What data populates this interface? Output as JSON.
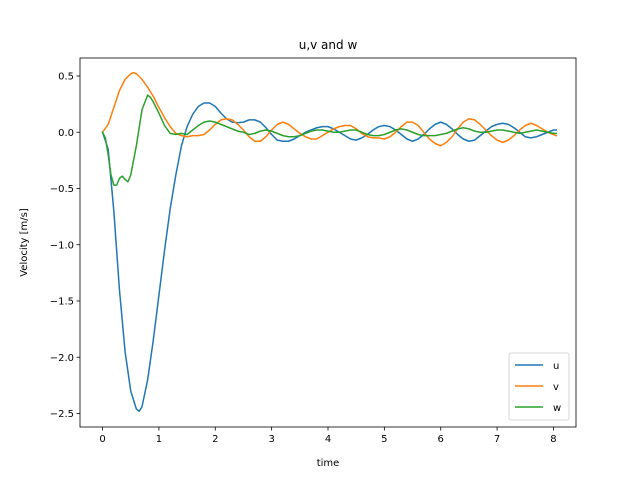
{
  "chart_data": {
    "type": "line",
    "title": "u,v and w",
    "xlabel": "time",
    "ylabel": "Velocity [m/s]",
    "xlim": [
      -0.4,
      8.4
    ],
    "ylim": [
      -2.62,
      0.66
    ],
    "xticks": [
      0,
      1,
      2,
      3,
      4,
      5,
      6,
      7,
      8
    ],
    "xtick_labels": [
      "0",
      "1",
      "2",
      "3",
      "4",
      "5",
      "6",
      "7",
      "8"
    ],
    "yticks": [
      0.5,
      0.0,
      -0.5,
      -1.0,
      -1.5,
      -2.0,
      -2.5
    ],
    "ytick_labels": [
      "0.5",
      "0.0",
      "−0.5",
      "−1.0",
      "−1.5",
      "−2.0",
      "−2.5"
    ],
    "grid": false,
    "legend_position": "lower-right",
    "series": [
      {
        "name": "u",
        "color": "#1f77b4",
        "x": [
          0,
          0.1,
          0.2,
          0.3,
          0.4,
          0.5,
          0.6,
          0.65,
          0.7,
          0.8,
          0.9,
          1.0,
          1.1,
          1.2,
          1.3,
          1.4,
          1.5,
          1.6,
          1.7,
          1.8,
          1.9,
          2.0,
          2.1,
          2.2,
          2.3,
          2.4,
          2.5,
          2.6,
          2.7,
          2.8,
          2.9,
          3.0,
          3.1,
          3.2,
          3.3,
          3.4,
          3.5,
          3.6,
          3.7,
          3.8,
          3.9,
          4.0,
          4.1,
          4.2,
          4.3,
          4.4,
          4.5,
          4.6,
          4.7,
          4.8,
          4.9,
          5.0,
          5.1,
          5.2,
          5.3,
          5.4,
          5.5,
          5.6,
          5.7,
          5.8,
          5.9,
          6.0,
          6.1,
          6.2,
          6.3,
          6.4,
          6.5,
          6.6,
          6.7,
          6.8,
          6.9,
          7.0,
          7.1,
          7.2,
          7.3,
          7.4,
          7.5,
          7.6,
          7.7,
          7.8,
          7.9,
          8.0,
          8.05
        ],
        "y": [
          0.0,
          -0.15,
          -0.7,
          -1.4,
          -1.95,
          -2.3,
          -2.46,
          -2.48,
          -2.44,
          -2.2,
          -1.85,
          -1.45,
          -1.05,
          -0.68,
          -0.38,
          -0.12,
          0.05,
          0.16,
          0.23,
          0.26,
          0.26,
          0.23,
          0.17,
          0.12,
          0.09,
          0.085,
          0.09,
          0.11,
          0.11,
          0.09,
          0.04,
          -0.02,
          -0.07,
          -0.08,
          -0.08,
          -0.06,
          -0.03,
          0.0,
          0.02,
          0.04,
          0.05,
          0.05,
          0.03,
          0.0,
          -0.03,
          -0.06,
          -0.07,
          -0.05,
          -0.02,
          0.02,
          0.05,
          0.06,
          0.05,
          0.02,
          -0.02,
          -0.06,
          -0.08,
          -0.06,
          -0.02,
          0.03,
          0.07,
          0.09,
          0.07,
          0.03,
          -0.02,
          -0.06,
          -0.08,
          -0.07,
          -0.03,
          0.01,
          0.05,
          0.07,
          0.08,
          0.07,
          0.04,
          0.0,
          -0.04,
          -0.05,
          -0.04,
          -0.02,
          0.0,
          0.02,
          0.02
        ]
      },
      {
        "name": "v",
        "color": "#ff7f0e",
        "x": [
          0,
          0.1,
          0.2,
          0.3,
          0.4,
          0.5,
          0.55,
          0.6,
          0.7,
          0.8,
          0.9,
          1.0,
          1.1,
          1.2,
          1.3,
          1.4,
          1.5,
          1.6,
          1.7,
          1.8,
          1.9,
          2.0,
          2.1,
          2.2,
          2.3,
          2.4,
          2.5,
          2.6,
          2.7,
          2.8,
          2.9,
          3.0,
          3.1,
          3.2,
          3.3,
          3.4,
          3.5,
          3.6,
          3.7,
          3.8,
          3.9,
          4.0,
          4.1,
          4.2,
          4.3,
          4.4,
          4.5,
          4.6,
          4.7,
          4.8,
          4.9,
          5.0,
          5.1,
          5.2,
          5.3,
          5.4,
          5.5,
          5.6,
          5.7,
          5.8,
          5.9,
          6.0,
          6.1,
          6.2,
          6.3,
          6.4,
          6.5,
          6.6,
          6.7,
          6.8,
          6.9,
          7.0,
          7.1,
          7.2,
          7.3,
          7.4,
          7.5,
          7.6,
          7.7,
          7.8,
          7.9,
          8.0,
          8.05
        ],
        "y": [
          0.0,
          0.07,
          0.22,
          0.37,
          0.47,
          0.52,
          0.53,
          0.52,
          0.47,
          0.4,
          0.32,
          0.22,
          0.13,
          0.05,
          -0.01,
          -0.03,
          -0.04,
          -0.03,
          -0.03,
          -0.02,
          0.02,
          0.07,
          0.11,
          0.12,
          0.11,
          0.07,
          0.02,
          -0.04,
          -0.08,
          -0.08,
          -0.04,
          0.02,
          0.07,
          0.09,
          0.07,
          0.03,
          -0.01,
          -0.04,
          -0.06,
          -0.06,
          -0.03,
          0.0,
          0.03,
          0.05,
          0.06,
          0.06,
          0.03,
          -0.01,
          -0.04,
          -0.05,
          -0.05,
          -0.06,
          -0.04,
          0.0,
          0.05,
          0.09,
          0.09,
          0.06,
          0.0,
          -0.06,
          -0.1,
          -0.12,
          -0.09,
          -0.04,
          0.03,
          0.09,
          0.12,
          0.11,
          0.07,
          0.02,
          -0.03,
          -0.07,
          -0.09,
          -0.07,
          -0.03,
          0.02,
          0.06,
          0.08,
          0.06,
          0.03,
          0.0,
          -0.02,
          -0.03
        ]
      },
      {
        "name": "w",
        "color": "#2ca02c",
        "x": [
          0,
          0.05,
          0.1,
          0.15,
          0.2,
          0.25,
          0.3,
          0.35,
          0.4,
          0.45,
          0.5,
          0.6,
          0.7,
          0.8,
          0.85,
          0.9,
          1.0,
          1.1,
          1.2,
          1.3,
          1.4,
          1.5,
          1.6,
          1.7,
          1.8,
          1.9,
          2.0,
          2.1,
          2.2,
          2.3,
          2.4,
          2.5,
          2.6,
          2.7,
          2.8,
          2.9,
          3.0,
          3.1,
          3.2,
          3.3,
          3.4,
          3.5,
          3.6,
          3.7,
          3.8,
          3.9,
          4.0,
          4.1,
          4.2,
          4.3,
          4.4,
          4.5,
          4.6,
          4.7,
          4.8,
          4.9,
          5.0,
          5.1,
          5.2,
          5.3,
          5.4,
          5.5,
          5.6,
          5.7,
          5.8,
          5.9,
          6.0,
          6.1,
          6.2,
          6.3,
          6.4,
          6.5,
          6.6,
          6.7,
          6.8,
          6.9,
          7.0,
          7.1,
          7.2,
          7.3,
          7.4,
          7.5,
          7.6,
          7.7,
          7.8,
          7.9,
          8.0,
          8.05
        ],
        "y": [
          0.0,
          -0.05,
          -0.2,
          -0.38,
          -0.47,
          -0.47,
          -0.41,
          -0.39,
          -0.42,
          -0.44,
          -0.38,
          -0.12,
          0.2,
          0.33,
          0.31,
          0.27,
          0.17,
          0.06,
          -0.01,
          -0.02,
          -0.01,
          -0.02,
          0.02,
          0.06,
          0.09,
          0.1,
          0.09,
          0.07,
          0.05,
          0.03,
          0.01,
          0.0,
          -0.02,
          -0.01,
          0.01,
          0.02,
          0.01,
          -0.01,
          -0.03,
          -0.04,
          -0.04,
          -0.03,
          -0.01,
          0.01,
          0.02,
          0.02,
          0.01,
          0.0,
          0.0,
          0.01,
          0.02,
          0.02,
          0.0,
          -0.02,
          -0.03,
          -0.03,
          -0.02,
          0.0,
          0.02,
          0.03,
          0.02,
          0.0,
          -0.02,
          -0.03,
          -0.03,
          -0.03,
          -0.02,
          -0.01,
          0.01,
          0.03,
          0.04,
          0.03,
          0.01,
          0.0,
          0.0,
          0.01,
          0.02,
          0.02,
          0.01,
          0.0,
          -0.01,
          0.0,
          0.01,
          0.02,
          0.01,
          0.0,
          -0.01,
          -0.01
        ]
      }
    ]
  }
}
